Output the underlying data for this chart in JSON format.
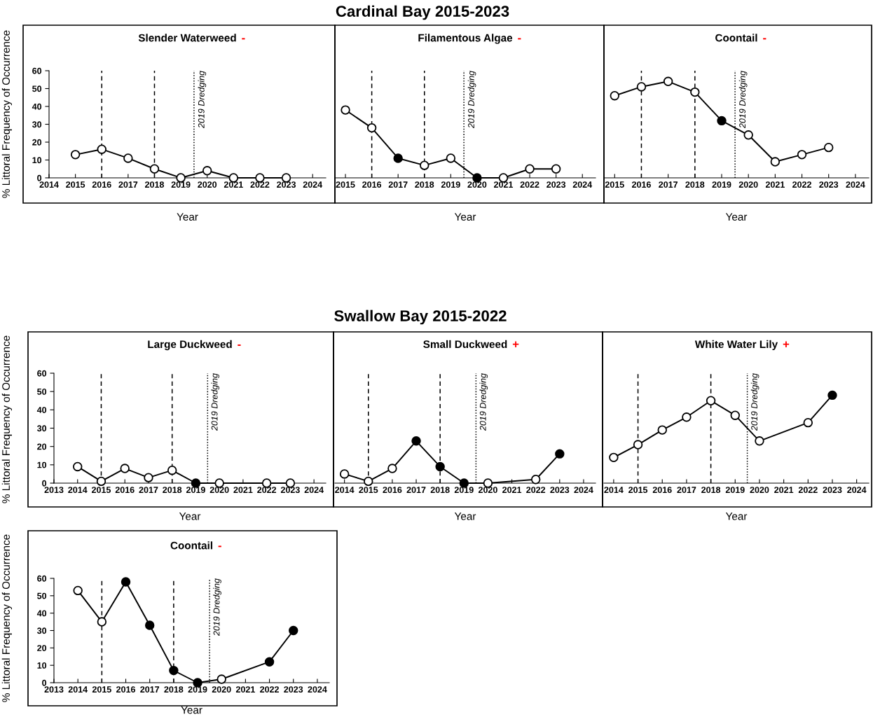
{
  "chart_data": [
    {
      "type": "line",
      "title": "Slender Waterweed",
      "annotations": [
        "Cardinal Bay 2015-2023",
        "-"
      ],
      "xlabel": "Year",
      "ylabel": "% Littoral Frequency of Occurrence",
      "x": [
        2015,
        2016,
        2017,
        2018,
        2019,
        2020,
        2021,
        2022,
        2023
      ],
      "series": [
        {
          "type": "line",
          "color": "#000000",
          "values": [
            13,
            16,
            11,
            5,
            0,
            4,
            0,
            0,
            0
          ]
        },
        {
          "type": "scatter",
          "marker": "circle",
          "color": "#ffffff",
          "values": [
            13,
            16,
            11,
            5,
            0,
            4,
            0,
            0,
            0
          ]
        }
      ],
      "ref_lines": [
        {
          "axis": "x",
          "value": 2016,
          "line_style": "dashed",
          "color": "#000000"
        },
        {
          "axis": "x",
          "value": 2018,
          "line_style": "dashed",
          "color": "#000000"
        },
        {
          "axis": "x",
          "value": 2019.5,
          "line_style": "dotted",
          "color": "#000000",
          "label": "2019 Dredging"
        }
      ],
      "xlim": [
        2014,
        2024.5
      ],
      "xticks": [
        2014,
        2015,
        2016,
        2017,
        2018,
        2019,
        2020,
        2021,
        2022,
        2023,
        2024
      ],
      "ylim": [
        0,
        60
      ],
      "yticks": [
        0,
        10,
        20,
        30,
        40,
        50,
        60
      ],
      "grid": false,
      "legend": false
    },
    {
      "type": "line",
      "title": "Filamentous Algae",
      "annotations": [
        "-"
      ],
      "xlabel": "Year",
      "x": [
        2015,
        2016,
        2017,
        2018,
        2019,
        2020,
        2021,
        2022,
        2023
      ],
      "series": [
        {
          "type": "line",
          "color": "#000000",
          "values": [
            38,
            28,
            11,
            7,
            11,
            0,
            0,
            5,
            5
          ]
        },
        {
          "type": "scatter",
          "marker": "circle",
          "color": "#ffffff",
          "values": [
            38,
            28,
            null,
            7,
            11,
            null,
            0,
            5,
            5
          ]
        },
        {
          "type": "scatter",
          "marker": "circle",
          "color": "#000000",
          "values": [
            null,
            null,
            11,
            null,
            null,
            0,
            null,
            null,
            null
          ]
        }
      ],
      "ref_lines": [
        {
          "axis": "x",
          "value": 2016,
          "line_style": "dashed",
          "color": "#000000"
        },
        {
          "axis": "x",
          "value": 2018,
          "line_style": "dashed",
          "color": "#000000"
        },
        {
          "axis": "x",
          "value": 2019.5,
          "line_style": "dotted",
          "color": "#000000",
          "label": "2019 Dredging"
        }
      ],
      "xlim": [
        2014.6,
        2024.5
      ],
      "xticks": [
        2015,
        2016,
        2017,
        2018,
        2019,
        2020,
        2021,
        2022,
        2023,
        2024
      ],
      "ylim": [
        0,
        60
      ],
      "tick_labels": "x",
      "grid": false,
      "legend": false
    },
    {
      "type": "line",
      "title": "Coontail",
      "annotations": [
        "-"
      ],
      "xlabel": "Year",
      "x": [
        2015,
        2016,
        2017,
        2018,
        2019,
        2020,
        2021,
        2022,
        2023
      ],
      "series": [
        {
          "type": "line",
          "color": "#000000",
          "values": [
            46,
            51,
            54,
            48,
            32,
            24,
            9,
            13,
            17
          ]
        },
        {
          "type": "scatter",
          "marker": "circle",
          "color": "#ffffff",
          "values": [
            46,
            51,
            54,
            48,
            null,
            24,
            9,
            13,
            17
          ]
        },
        {
          "type": "scatter",
          "marker": "circle",
          "color": "#000000",
          "values": [
            null,
            null,
            null,
            null,
            32,
            null,
            null,
            null,
            null
          ]
        }
      ],
      "ref_lines": [
        {
          "axis": "x",
          "value": 2016,
          "line_style": "dashed",
          "color": "#000000"
        },
        {
          "axis": "x",
          "value": 2018,
          "line_style": "dashed",
          "color": "#000000"
        },
        {
          "axis": "x",
          "value": 2019.5,
          "line_style": "dotted",
          "color": "#000000",
          "label": "2019 Dredging"
        }
      ],
      "xlim": [
        2014.6,
        2024.5
      ],
      "xticks": [
        2015,
        2016,
        2017,
        2018,
        2019,
        2020,
        2021,
        2022,
        2023,
        2024
      ],
      "ylim": [
        0,
        60
      ],
      "tick_labels": "x",
      "grid": false,
      "legend": false
    },
    {
      "type": "line",
      "title": "Large Duckweed",
      "annotations": [
        "Swallow Bay 2015-2022",
        "-"
      ],
      "xlabel": "Year",
      "ylabel": "% Littoral Frequency of Occurrence",
      "x": [
        2014,
        2015,
        2016,
        2017,
        2018,
        2019,
        2020,
        2022,
        2023
      ],
      "series": [
        {
          "type": "line",
          "color": "#000000",
          "values": [
            9,
            1,
            8,
            3,
            7,
            0,
            0,
            0,
            0
          ]
        },
        {
          "type": "scatter",
          "marker": "circle",
          "color": "#ffffff",
          "values": [
            9,
            1,
            8,
            3,
            7,
            null,
            0,
            0,
            0
          ]
        },
        {
          "type": "scatter",
          "marker": "circle",
          "color": "#000000",
          "values": [
            null,
            null,
            null,
            null,
            null,
            0,
            null,
            null,
            null
          ]
        }
      ],
      "ref_lines": [
        {
          "axis": "x",
          "value": 2015,
          "line_style": "dashed",
          "color": "#000000"
        },
        {
          "axis": "x",
          "value": 2018,
          "line_style": "dashed",
          "color": "#000000"
        },
        {
          "axis": "x",
          "value": 2019.5,
          "line_style": "dotted",
          "color": "#000000",
          "label": "2019 Dredging"
        }
      ],
      "xlim": [
        2013,
        2024.5
      ],
      "xticks": [
        2013,
        2014,
        2015,
        2016,
        2017,
        2018,
        2019,
        2020,
        2021,
        2022,
        2023,
        2024
      ],
      "ylim": [
        0,
        60
      ],
      "yticks": [
        0,
        10,
        20,
        30,
        40,
        50,
        60
      ],
      "grid": false,
      "legend": false
    },
    {
      "type": "line",
      "title": "Small Duckweed",
      "annotations": [
        "+"
      ],
      "xlabel": "Year",
      "x": [
        2014,
        2015,
        2016,
        2017,
        2018,
        2019,
        2020,
        2022,
        2023
      ],
      "series": [
        {
          "type": "line",
          "color": "#000000",
          "values": [
            5,
            1,
            8,
            23,
            9,
            0,
            0,
            2,
            16
          ]
        },
        {
          "type": "scatter",
          "marker": "circle",
          "color": "#ffffff",
          "values": [
            5,
            1,
            8,
            null,
            null,
            null,
            0,
            2,
            null
          ]
        },
        {
          "type": "scatter",
          "marker": "circle",
          "color": "#000000",
          "values": [
            null,
            null,
            null,
            23,
            9,
            0,
            null,
            null,
            16
          ]
        }
      ],
      "ref_lines": [
        {
          "axis": "x",
          "value": 2015,
          "line_style": "dashed",
          "color": "#000000"
        },
        {
          "axis": "x",
          "value": 2018,
          "line_style": "dashed",
          "color": "#000000"
        },
        {
          "axis": "x",
          "value": 2019.5,
          "line_style": "dotted",
          "color": "#000000",
          "label": "2019 Dredging"
        }
      ],
      "xlim": [
        2013.6,
        2024.5
      ],
      "xticks": [
        2014,
        2015,
        2016,
        2017,
        2018,
        2019,
        2020,
        2021,
        2022,
        2023,
        2024
      ],
      "ylim": [
        0,
        60
      ],
      "tick_labels": "x",
      "grid": false,
      "legend": false
    },
    {
      "type": "line",
      "title": "White Water Lily",
      "annotations": [
        "+"
      ],
      "xlabel": "Year",
      "x": [
        2014,
        2015,
        2016,
        2017,
        2018,
        2019,
        2020,
        2022,
        2023
      ],
      "series": [
        {
          "type": "line",
          "color": "#000000",
          "values": [
            14,
            21,
            29,
            36,
            45,
            37,
            23,
            33,
            48
          ]
        },
        {
          "type": "scatter",
          "marker": "circle",
          "color": "#ffffff",
          "values": [
            14,
            21,
            29,
            36,
            45,
            37,
            23,
            33,
            null
          ]
        },
        {
          "type": "scatter",
          "marker": "circle",
          "color": "#000000",
          "values": [
            null,
            null,
            null,
            null,
            null,
            null,
            null,
            null,
            48
          ]
        }
      ],
      "ref_lines": [
        {
          "axis": "x",
          "value": 2015,
          "line_style": "dashed",
          "color": "#000000"
        },
        {
          "axis": "x",
          "value": 2018,
          "line_style": "dashed",
          "color": "#000000"
        },
        {
          "axis": "x",
          "value": 2019.5,
          "line_style": "dotted",
          "color": "#000000",
          "label": "2019 Dredging"
        }
      ],
      "xlim": [
        2013.6,
        2024.5
      ],
      "xticks": [
        2014,
        2015,
        2016,
        2017,
        2018,
        2019,
        2020,
        2021,
        2022,
        2023,
        2024
      ],
      "ylim": [
        0,
        60
      ],
      "tick_labels": "x",
      "grid": false,
      "legend": false
    },
    {
      "type": "line",
      "title": "Coontail",
      "annotations": [
        "-"
      ],
      "xlabel": "Year",
      "ylabel": "% Littoral Frequency of Occurrence",
      "x": [
        2014,
        2015,
        2016,
        2017,
        2018,
        2019,
        2020,
        2022,
        2023
      ],
      "series": [
        {
          "type": "line",
          "color": "#000000",
          "values": [
            53,
            35,
            58,
            33,
            7,
            0,
            2,
            12,
            30
          ]
        },
        {
          "type": "scatter",
          "marker": "circle",
          "color": "#ffffff",
          "values": [
            53,
            35,
            null,
            null,
            null,
            null,
            2,
            null,
            null
          ]
        },
        {
          "type": "scatter",
          "marker": "circle",
          "color": "#000000",
          "values": [
            null,
            null,
            58,
            33,
            7,
            0,
            null,
            12,
            30
          ]
        }
      ],
      "ref_lines": [
        {
          "axis": "x",
          "value": 2015,
          "line_style": "dashed",
          "color": "#000000"
        },
        {
          "axis": "x",
          "value": 2018,
          "line_style": "dashed",
          "color": "#000000"
        },
        {
          "axis": "x",
          "value": 2019.5,
          "line_style": "dotted",
          "color": "#000000",
          "label": "2019 Dredging"
        }
      ],
      "xlim": [
        2013,
        2024.5
      ],
      "xticks": [
        2013,
        2014,
        2015,
        2016,
        2017,
        2018,
        2019,
        2020,
        2021,
        2022,
        2023,
        2024
      ],
      "ylim": [
        0,
        60
      ],
      "yticks": [
        0,
        10,
        20,
        30,
        40,
        50,
        60
      ],
      "grid": false,
      "legend": false
    }
  ]
}
